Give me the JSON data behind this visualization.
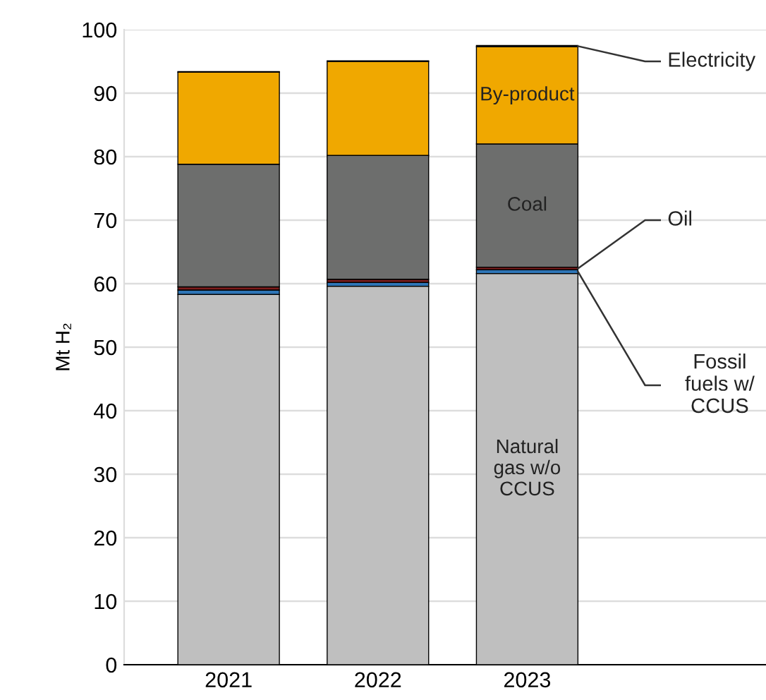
{
  "chart_data": {
    "type": "bar",
    "stacked": true,
    "ylabel": "Mt H₂",
    "categories": [
      "2021",
      "2022",
      "2023"
    ],
    "series": [
      {
        "name": "Natural\ngas w/o\nCCUS",
        "color": "#bfbfbf",
        "values": [
          58.3,
          59.6,
          61.6
        ]
      },
      {
        "name": "Fossil\nfuels w/\nCCUS",
        "color": "#2e75b6",
        "values": [
          0.7,
          0.6,
          0.6
        ]
      },
      {
        "name": "Oil",
        "color": "#7b1c1c",
        "values": [
          0.5,
          0.5,
          0.4
        ]
      },
      {
        "name": "Coal",
        "color": "#6d6e6d",
        "values": [
          19.3,
          19.5,
          19.4
        ]
      },
      {
        "name": "By-product",
        "color": "#f0a800",
        "values": [
          14.5,
          14.8,
          15.3
        ]
      },
      {
        "name": "Electricity",
        "color": "#3a3a3a",
        "values": [
          0.1,
          0.1,
          0.2
        ]
      }
    ],
    "ylim": [
      0,
      100
    ],
    "yticks": [
      0,
      10,
      20,
      30,
      40,
      50,
      60,
      70,
      80,
      90,
      100
    ],
    "grid": "y"
  }
}
